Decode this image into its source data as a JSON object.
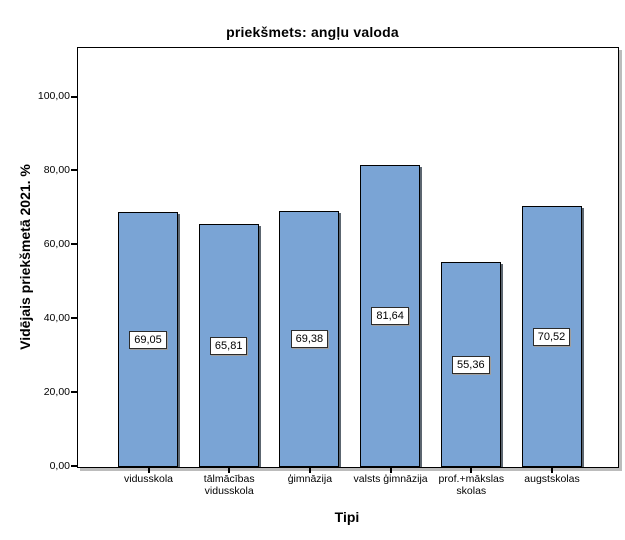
{
  "chart_data": {
    "type": "bar",
    "title": "priekšmets: angļu valoda",
    "xlabel": "Tipi",
    "ylabel": "Vidējais priekšmetā 2021. %",
    "categories": [
      "vidusskola",
      "tālmācības vidusskola",
      "ģimnāzija",
      "valsts ģimnāzija",
      "prof.+mākslas skolas",
      "augstskolas"
    ],
    "values": [
      69.05,
      65.81,
      69.38,
      81.64,
      55.36,
      70.52
    ],
    "value_labels": [
      "69,05",
      "65,81",
      "69,38",
      "81,64",
      "55,36",
      "70,52"
    ],
    "ytick_values": [
      0,
      20,
      40,
      60,
      80,
      100
    ],
    "ytick_labels": [
      "0,00",
      "20,00",
      "40,00",
      "60,00",
      "80,00",
      "100,00"
    ],
    "ylim": [
      0,
      113
    ],
    "grid": false,
    "legend": "none",
    "bar_fill_color": "#7AA4D5",
    "bar_border_color": "#000000",
    "bar_shadow_color": "#5c6670",
    "frame_shadow_color": "#bcbcbc",
    "background_color": "#ffffff"
  }
}
